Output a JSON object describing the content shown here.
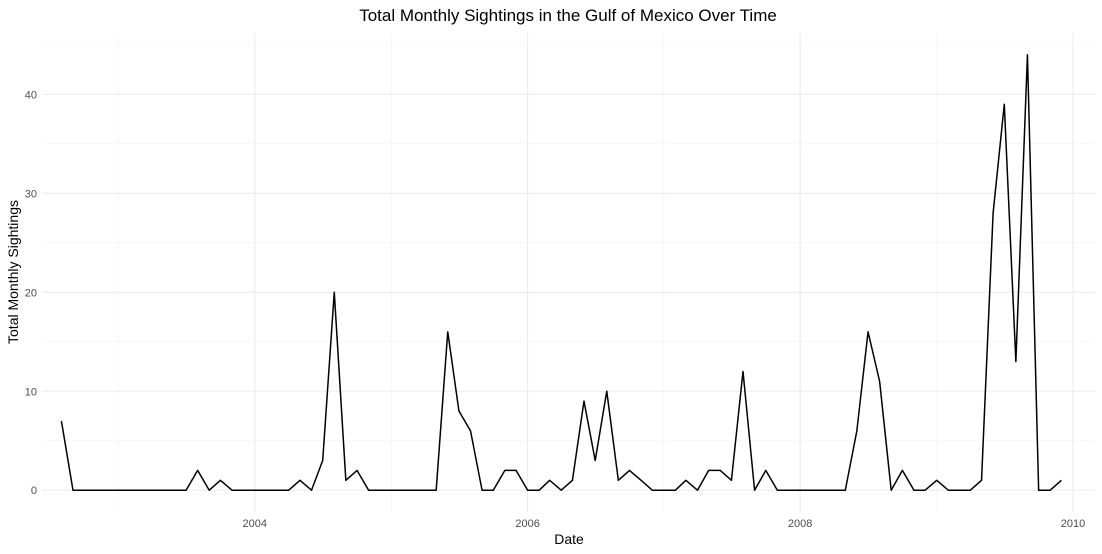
{
  "chart_data": {
    "type": "line",
    "title": "Total Monthly Sightings in the Gulf of Mexico Over Time",
    "xlabel": "Date",
    "ylabel": "Total Monthly Sightings",
    "xlim": [
      "2002-06-10",
      "2010-03-01"
    ],
    "ylim": [
      -2.2,
      46.2
    ],
    "x_ticks": [
      "2004",
      "2006",
      "2008",
      "2010"
    ],
    "y_ticks": [
      0,
      10,
      20,
      30,
      40
    ],
    "grid": true,
    "line_color": "#000000",
    "series": [
      {
        "x": [
          "2002-08-01",
          "2002-09-01",
          "2002-10-01",
          "2002-11-01",
          "2002-12-01",
          "2003-01-01",
          "2003-02-01",
          "2003-03-01",
          "2003-04-01",
          "2003-05-01",
          "2003-06-01",
          "2003-07-01",
          "2003-08-01",
          "2003-09-01",
          "2003-10-01",
          "2003-11-01",
          "2003-12-01",
          "2004-01-01",
          "2004-02-01",
          "2004-03-01",
          "2004-04-01",
          "2004-05-01",
          "2004-06-01",
          "2004-07-01",
          "2004-08-01",
          "2004-09-01",
          "2004-10-01",
          "2004-11-01",
          "2004-12-01",
          "2005-01-01",
          "2005-02-01",
          "2005-03-01",
          "2005-04-01",
          "2005-05-01",
          "2005-06-01",
          "2005-07-01",
          "2005-08-01",
          "2005-09-01",
          "2005-10-01",
          "2005-11-01",
          "2005-12-01",
          "2006-01-01",
          "2006-02-01",
          "2006-03-01",
          "2006-04-01",
          "2006-05-01",
          "2006-06-01",
          "2006-07-01",
          "2006-08-01",
          "2006-09-01",
          "2006-10-01",
          "2006-11-01",
          "2006-12-01",
          "2007-01-01",
          "2007-02-01",
          "2007-03-01",
          "2007-04-01",
          "2007-05-01",
          "2007-06-01",
          "2007-07-01",
          "2007-08-01",
          "2007-09-01",
          "2007-10-01",
          "2007-11-01",
          "2007-12-01",
          "2008-01-01",
          "2008-02-01",
          "2008-03-01",
          "2008-04-01",
          "2008-05-01",
          "2008-06-01",
          "2008-07-01",
          "2008-08-01",
          "2008-09-01",
          "2008-10-01",
          "2008-11-01",
          "2008-12-01",
          "2009-01-01",
          "2009-02-01",
          "2009-03-01",
          "2009-04-01",
          "2009-05-01",
          "2009-06-01",
          "2009-07-01",
          "2009-08-01",
          "2009-09-01",
          "2009-10-01",
          "2009-11-01",
          "2009-12-01"
        ],
        "values": [
          7,
          0,
          0,
          0,
          0,
          0,
          0,
          0,
          0,
          0,
          0,
          0,
          2,
          0,
          1,
          0,
          0,
          0,
          0,
          0,
          0,
          1,
          0,
          3,
          20,
          1,
          2,
          0,
          0,
          0,
          0,
          0,
          0,
          0,
          16,
          8,
          6,
          0,
          0,
          2,
          2,
          0,
          0,
          1,
          0,
          1,
          9,
          3,
          10,
          1,
          2,
          1,
          0,
          0,
          0,
          1,
          0,
          2,
          2,
          1,
          12,
          0,
          2,
          0,
          0,
          0,
          0,
          0,
          0,
          0,
          6,
          16,
          11,
          0,
          2,
          0,
          0,
          1,
          0,
          0,
          0,
          1,
          28,
          39,
          13,
          44,
          0,
          0,
          1
        ]
      }
    ]
  }
}
